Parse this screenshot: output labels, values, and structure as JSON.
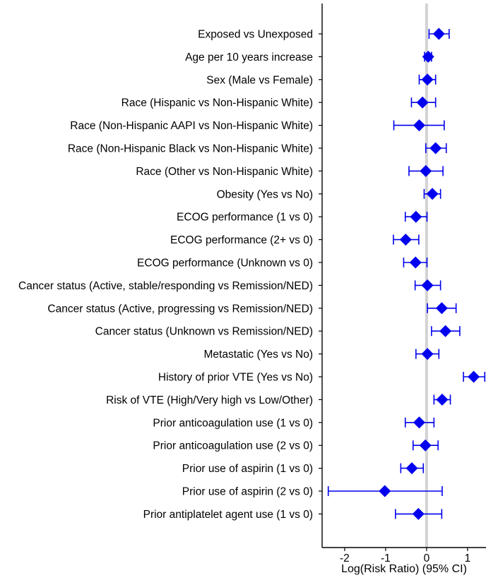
{
  "chart_data": {
    "type": "scatter",
    "subtype": "forest-plot",
    "title": "",
    "xlabel": "Log(Risk Ratio) (95% CI)",
    "ylabel": "",
    "xlim": [
      -2.55,
      1.45
    ],
    "xticks": [
      -2,
      -1,
      0,
      1
    ],
    "xtick_labels": [
      "-2",
      "-1",
      "0",
      "1"
    ],
    "reference_line_x": 0,
    "grid": false,
    "legend": "none",
    "colors": {
      "marker": "#0000ee",
      "errorbar": "#0000ee",
      "reference_line": "#d3d3d3",
      "axis": "#000000"
    },
    "rows": [
      {
        "label": "Exposed vs Unexposed",
        "estimate": 0.3,
        "lower": 0.06,
        "upper": 0.55
      },
      {
        "label": "Age per 10 years increase",
        "estimate": 0.04,
        "lower": -0.05,
        "upper": 0.12
      },
      {
        "label": "Sex (Male vs Female)",
        "estimate": 0.02,
        "lower": -0.18,
        "upper": 0.22
      },
      {
        "label": "Race (Hispanic vs Non-Hispanic White)",
        "estimate": -0.1,
        "lower": -0.37,
        "upper": 0.22
      },
      {
        "label": "Race (Non-Hispanic AAPI vs Non-Hispanic White)",
        "estimate": -0.18,
        "lower": -0.8,
        "upper": 0.43
      },
      {
        "label": "Race (Non-Hispanic Black vs Non-Hispanic White)",
        "estimate": 0.22,
        "lower": -0.02,
        "upper": 0.48
      },
      {
        "label": "Race (Other vs Non-Hispanic White)",
        "estimate": -0.02,
        "lower": -0.43,
        "upper": 0.4
      },
      {
        "label": "Obesity (Yes vs No)",
        "estimate": 0.14,
        "lower": -0.06,
        "upper": 0.34
      },
      {
        "label": "ECOG performance (1 vs 0)",
        "estimate": -0.26,
        "lower": -0.52,
        "upper": 0.01
      },
      {
        "label": "ECOG performance (2+ vs 0)",
        "estimate": -0.51,
        "lower": -0.81,
        "upper": -0.19
      },
      {
        "label": "ECOG performance (Unknown vs 0)",
        "estimate": -0.27,
        "lower": -0.56,
        "upper": 0.01
      },
      {
        "label": "Cancer status (Active, stable/responding vs Remission/NED)",
        "estimate": 0.02,
        "lower": -0.28,
        "upper": 0.34
      },
      {
        "label": "Cancer status (Active, progressing vs Remission/NED)",
        "estimate": 0.37,
        "lower": 0.02,
        "upper": 0.72
      },
      {
        "label": "Cancer status (Unknown vs Remission/NED)",
        "estimate": 0.46,
        "lower": 0.12,
        "upper": 0.81
      },
      {
        "label": "Metastatic (Yes vs No)",
        "estimate": 0.02,
        "lower": -0.26,
        "upper": 0.3
      },
      {
        "label": "History of prior VTE (Yes vs No)",
        "estimate": 1.15,
        "lower": 0.9,
        "upper": 1.42
      },
      {
        "label": "Risk of VTE (High/Very high vs Low/Other)",
        "estimate": 0.38,
        "lower": 0.18,
        "upper": 0.58
      },
      {
        "label": "Prior anticoagulation use (1 vs 0)",
        "estimate": -0.18,
        "lower": -0.52,
        "upper": 0.18
      },
      {
        "label": "Prior anticoagulation use (2 vs 0)",
        "estimate": -0.03,
        "lower": -0.33,
        "upper": 0.28
      },
      {
        "label": "Prior use of aspirin (1 vs 0)",
        "estimate": -0.36,
        "lower": -0.63,
        "upper": -0.08
      },
      {
        "label": "Prior use of aspirin (2 vs 0)",
        "estimate": -1.02,
        "lower": -2.4,
        "upper": 0.38
      },
      {
        "label": "Prior antiplatelet agent use (1 vs 0)",
        "estimate": -0.2,
        "lower": -0.76,
        "upper": 0.37
      }
    ]
  }
}
